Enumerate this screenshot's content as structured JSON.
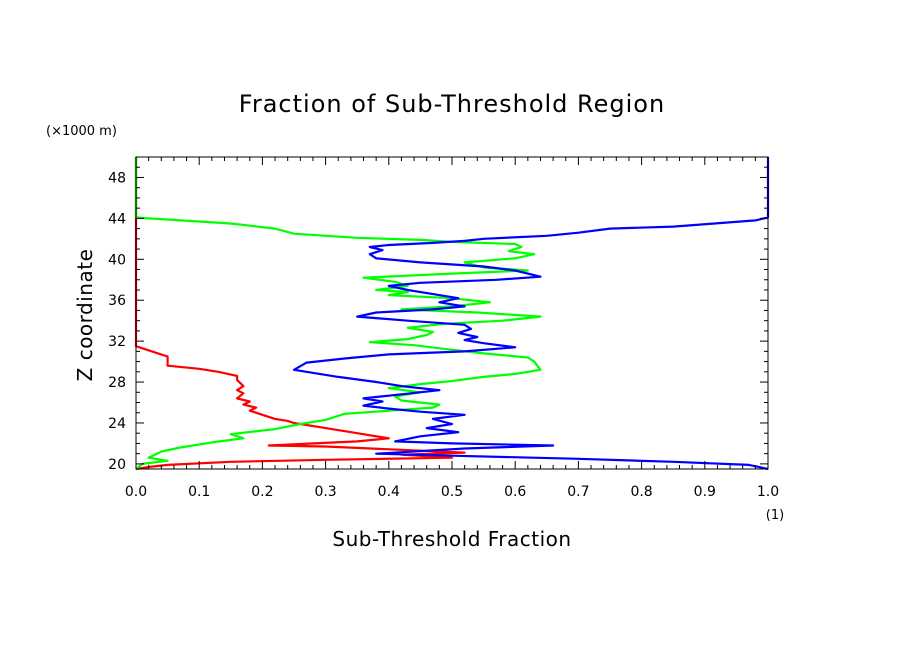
{
  "chart_data": {
    "type": "line",
    "title": "Fraction of Sub-Threshold Region",
    "xlabel": "Sub-Threshold Fraction",
    "ylabel": "Z coordinate",
    "x_unit": "(1)",
    "y_unit": "(×1000 m)",
    "xlim": [
      0.0,
      1.0
    ],
    "ylim": [
      19.5,
      50
    ],
    "x_ticks": [
      "0.0",
      "0.1",
      "0.2",
      "0.3",
      "0.4",
      "0.5",
      "0.6",
      "0.7",
      "0.8",
      "0.9",
      "1.0"
    ],
    "y_ticks": [
      "20",
      "24",
      "28",
      "32",
      "36",
      "40",
      "44",
      "48"
    ],
    "y_tick_values": [
      20,
      24,
      28,
      32,
      36,
      40,
      44,
      48
    ],
    "grid": false,
    "legend": "none",
    "series": [
      {
        "color": "#ff0000",
        "points": [
          [
            0.0,
            50
          ],
          [
            0.0,
            44
          ],
          [
            0.0,
            40
          ],
          [
            0.0,
            36
          ],
          [
            0.0,
            32
          ],
          [
            0.0,
            31.5
          ],
          [
            0.03,
            30.9
          ],
          [
            0.05,
            30.5
          ],
          [
            0.05,
            29.6
          ],
          [
            0.1,
            29.3
          ],
          [
            0.13,
            29.0
          ],
          [
            0.16,
            28.6
          ],
          [
            0.16,
            28.2
          ],
          [
            0.17,
            27.6
          ],
          [
            0.16,
            27.2
          ],
          [
            0.17,
            26.9
          ],
          [
            0.16,
            26.4
          ],
          [
            0.18,
            26.1
          ],
          [
            0.17,
            25.8
          ],
          [
            0.19,
            25.5
          ],
          [
            0.18,
            25.2
          ],
          [
            0.2,
            24.8
          ],
          [
            0.22,
            24.4
          ],
          [
            0.24,
            24.2
          ],
          [
            0.25,
            24.0
          ],
          [
            0.3,
            23.5
          ],
          [
            0.35,
            23.0
          ],
          [
            0.4,
            22.5
          ],
          [
            0.35,
            22.2
          ],
          [
            0.21,
            21.8
          ],
          [
            0.3,
            21.7
          ],
          [
            0.52,
            21.1
          ],
          [
            0.42,
            20.9
          ],
          [
            0.5,
            20.6
          ],
          [
            0.3,
            20.4
          ],
          [
            0.15,
            20.2
          ],
          [
            0.05,
            19.9
          ],
          [
            0.02,
            19.7
          ],
          [
            0.0,
            19.5
          ]
        ]
      },
      {
        "color": "#00ff00",
        "points": [
          [
            0.0,
            50
          ],
          [
            0.0,
            44.1
          ],
          [
            0.02,
            44.0
          ],
          [
            0.15,
            43.5
          ],
          [
            0.22,
            43.0
          ],
          [
            0.25,
            42.5
          ],
          [
            0.35,
            42.1
          ],
          [
            0.45,
            41.9
          ],
          [
            0.5,
            41.7
          ],
          [
            0.6,
            41.5
          ],
          [
            0.61,
            41.2
          ],
          [
            0.59,
            40.8
          ],
          [
            0.63,
            40.5
          ],
          [
            0.6,
            40.1
          ],
          [
            0.52,
            39.7
          ],
          [
            0.55,
            39.2
          ],
          [
            0.62,
            38.9
          ],
          [
            0.5,
            38.6
          ],
          [
            0.36,
            38.2
          ],
          [
            0.41,
            37.8
          ],
          [
            0.43,
            37.4
          ],
          [
            0.38,
            37.0
          ],
          [
            0.43,
            36.8
          ],
          [
            0.4,
            36.5
          ],
          [
            0.5,
            36.2
          ],
          [
            0.56,
            35.8
          ],
          [
            0.5,
            35.4
          ],
          [
            0.42,
            35.1
          ],
          [
            0.54,
            34.8
          ],
          [
            0.64,
            34.4
          ],
          [
            0.58,
            34.0
          ],
          [
            0.49,
            33.7
          ],
          [
            0.43,
            33.3
          ],
          [
            0.47,
            32.9
          ],
          [
            0.46,
            32.6
          ],
          [
            0.43,
            32.2
          ],
          [
            0.37,
            31.9
          ],
          [
            0.44,
            31.6
          ],
          [
            0.48,
            31.3
          ],
          [
            0.55,
            30.8
          ],
          [
            0.62,
            30.4
          ],
          [
            0.63,
            30.0
          ],
          [
            0.64,
            29.2
          ],
          [
            0.6,
            28.8
          ],
          [
            0.55,
            28.5
          ],
          [
            0.5,
            28.1
          ],
          [
            0.45,
            27.8
          ],
          [
            0.4,
            27.4
          ],
          [
            0.45,
            27.0
          ],
          [
            0.41,
            26.6
          ],
          [
            0.42,
            26.2
          ],
          [
            0.48,
            25.8
          ],
          [
            0.47,
            25.5
          ],
          [
            0.4,
            25.2
          ],
          [
            0.33,
            24.9
          ],
          [
            0.3,
            24.3
          ],
          [
            0.26,
            23.9
          ],
          [
            0.22,
            23.4
          ],
          [
            0.15,
            22.9
          ],
          [
            0.17,
            22.5
          ],
          [
            0.12,
            22.1
          ],
          [
            0.07,
            21.6
          ],
          [
            0.04,
            21.2
          ],
          [
            0.02,
            20.6
          ],
          [
            0.05,
            20.3
          ],
          [
            0.01,
            20.0
          ],
          [
            0.0,
            19.5
          ]
        ]
      },
      {
        "color": "#0000ff",
        "points": [
          [
            1.0,
            50
          ],
          [
            1.0,
            44.1
          ],
          [
            0.98,
            43.8
          ],
          [
            0.85,
            43.2
          ],
          [
            0.75,
            43.0
          ],
          [
            0.7,
            42.6
          ],
          [
            0.65,
            42.3
          ],
          [
            0.55,
            42.0
          ],
          [
            0.52,
            41.8
          ],
          [
            0.47,
            41.6
          ],
          [
            0.4,
            41.4
          ],
          [
            0.37,
            41.2
          ],
          [
            0.39,
            40.9
          ],
          [
            0.37,
            40.5
          ],
          [
            0.38,
            40.1
          ],
          [
            0.45,
            39.7
          ],
          [
            0.55,
            39.3
          ],
          [
            0.6,
            38.9
          ],
          [
            0.64,
            38.3
          ],
          [
            0.57,
            38.0
          ],
          [
            0.45,
            37.7
          ],
          [
            0.4,
            37.4
          ],
          [
            0.43,
            37.0
          ],
          [
            0.47,
            36.6
          ],
          [
            0.51,
            36.2
          ],
          [
            0.48,
            35.8
          ],
          [
            0.52,
            35.4
          ],
          [
            0.47,
            35.1
          ],
          [
            0.38,
            34.8
          ],
          [
            0.35,
            34.4
          ],
          [
            0.43,
            34.0
          ],
          [
            0.52,
            33.6
          ],
          [
            0.53,
            33.2
          ],
          [
            0.51,
            32.8
          ],
          [
            0.54,
            32.4
          ],
          [
            0.52,
            32.1
          ],
          [
            0.55,
            31.8
          ],
          [
            0.6,
            31.4
          ],
          [
            0.52,
            31.0
          ],
          [
            0.4,
            30.7
          ],
          [
            0.33,
            30.3
          ],
          [
            0.27,
            29.9
          ],
          [
            0.25,
            29.2
          ],
          [
            0.32,
            28.5
          ],
          [
            0.38,
            28.0
          ],
          [
            0.42,
            27.6
          ],
          [
            0.48,
            27.2
          ],
          [
            0.42,
            26.8
          ],
          [
            0.36,
            26.4
          ],
          [
            0.39,
            26.1
          ],
          [
            0.36,
            25.7
          ],
          [
            0.4,
            25.4
          ],
          [
            0.45,
            25.1
          ],
          [
            0.52,
            24.8
          ],
          [
            0.47,
            24.4
          ],
          [
            0.5,
            23.9
          ],
          [
            0.46,
            23.5
          ],
          [
            0.51,
            23.1
          ],
          [
            0.45,
            22.7
          ],
          [
            0.41,
            22.2
          ],
          [
            0.5,
            22.0
          ],
          [
            0.66,
            21.8
          ],
          [
            0.52,
            21.5
          ],
          [
            0.38,
            21.0
          ],
          [
            0.5,
            20.8
          ],
          [
            0.7,
            20.5
          ],
          [
            0.85,
            20.2
          ],
          [
            0.97,
            19.9
          ],
          [
            1.0,
            19.5
          ]
        ]
      }
    ]
  }
}
